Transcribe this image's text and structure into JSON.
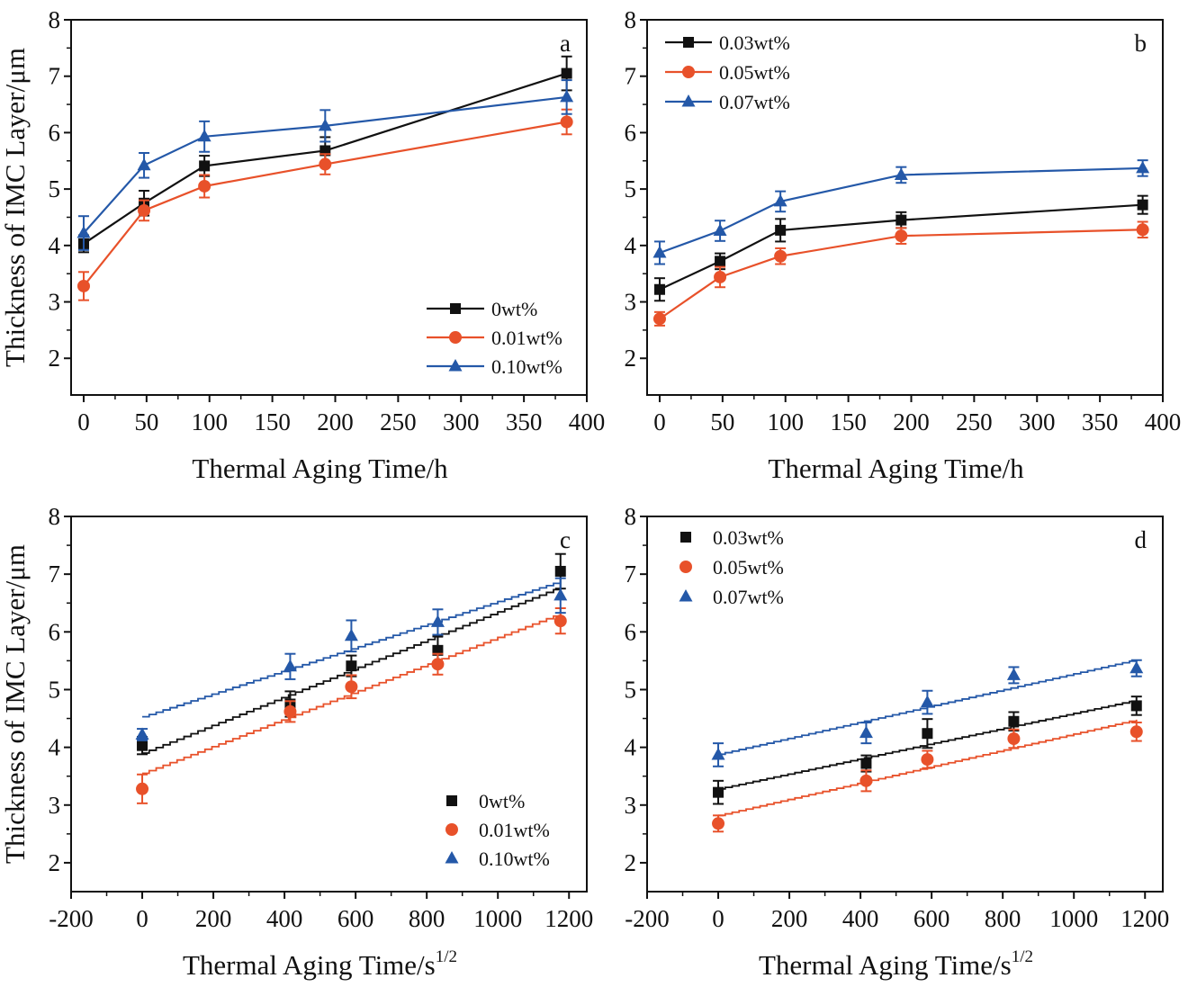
{
  "colors": {
    "black": "#111111",
    "red": "#e8512a",
    "blue": "#2458a8"
  },
  "chart_data": [
    {
      "panel": "a",
      "type": "line",
      "xlabel": "Thermal Aging Time/h",
      "ylabel": "Thickness of IMC Layer/μm",
      "xlim": [
        -10,
        400
      ],
      "ylim": [
        1.35,
        8
      ],
      "xticks": [
        0,
        50,
        100,
        150,
        200,
        250,
        300,
        350,
        400
      ],
      "yticks": [
        2,
        3,
        4,
        5,
        6,
        7,
        8
      ],
      "legend_position": "bottom-right",
      "legend_style": "line",
      "series": [
        {
          "name": "0wt%",
          "color": "#111111",
          "marker": "square",
          "x": [
            0,
            48,
            96,
            192,
            384
          ],
          "y": [
            4.03,
            4.75,
            5.41,
            5.68,
            7.05
          ],
          "err": [
            0.15,
            0.22,
            0.18,
            0.24,
            0.3
          ]
        },
        {
          "name": "0.01wt%",
          "color": "#e8512a",
          "marker": "circle",
          "x": [
            0,
            48,
            96,
            192,
            384
          ],
          "y": [
            3.28,
            4.62,
            5.05,
            5.44,
            6.19
          ],
          "err": [
            0.25,
            0.18,
            0.2,
            0.18,
            0.22
          ]
        },
        {
          "name": "0.10wt%",
          "color": "#2458a8",
          "marker": "triangle",
          "x": [
            0,
            48,
            96,
            192,
            384
          ],
          "y": [
            4.22,
            5.42,
            5.93,
            6.12,
            6.63
          ],
          "err": [
            0.3,
            0.22,
            0.27,
            0.28,
            0.3
          ]
        }
      ]
    },
    {
      "panel": "b",
      "type": "line",
      "xlabel": "Thermal Aging Time/h",
      "ylabel": "",
      "xlim": [
        -10,
        400
      ],
      "ylim": [
        1.35,
        8
      ],
      "xticks": [
        0,
        50,
        100,
        150,
        200,
        250,
        300,
        350,
        400
      ],
      "yticks": [
        2,
        3,
        4,
        5,
        6,
        7,
        8
      ],
      "legend_position": "top-left",
      "legend_style": "line",
      "series": [
        {
          "name": "0.03wt%",
          "color": "#111111",
          "marker": "square",
          "x": [
            0,
            48,
            96,
            192,
            384
          ],
          "y": [
            3.22,
            3.72,
            4.27,
            4.45,
            4.72
          ],
          "err": [
            0.2,
            0.14,
            0.2,
            0.14,
            0.16
          ]
        },
        {
          "name": "0.05wt%",
          "color": "#e8512a",
          "marker": "circle",
          "x": [
            0,
            48,
            96,
            192,
            384
          ],
          "y": [
            2.7,
            3.44,
            3.81,
            4.17,
            4.28
          ],
          "err": [
            0.12,
            0.18,
            0.14,
            0.14,
            0.14
          ]
        },
        {
          "name": "0.07wt%",
          "color": "#2458a8",
          "marker": "triangle",
          "x": [
            0,
            48,
            96,
            192,
            384
          ],
          "y": [
            3.87,
            4.26,
            4.78,
            5.25,
            5.37
          ],
          "err": [
            0.2,
            0.18,
            0.18,
            0.14,
            0.14
          ]
        }
      ]
    },
    {
      "panel": "c",
      "type": "scatter",
      "xlabel": "Thermal Aging Time/s",
      "xlabel_superscript": "1/2",
      "ylabel": "Thickness of IMC Layer/μm",
      "xlim": [
        -200,
        1250
      ],
      "ylim": [
        1.5,
        8
      ],
      "xticks": [
        -200,
        0,
        200,
        400,
        600,
        800,
        1000,
        1200
      ],
      "yticks": [
        2,
        3,
        4,
        5,
        6,
        7,
        8
      ],
      "legend_position": "bottom-right",
      "legend_style": "marker",
      "series": [
        {
          "name": "0wt%",
          "color": "#111111",
          "marker": "square",
          "x": [
            0,
            416,
            588,
            831,
            1176
          ],
          "y": [
            4.03,
            4.75,
            5.41,
            5.68,
            7.05
          ],
          "err": [
            0.15,
            0.22,
            0.18,
            0.24,
            0.3
          ],
          "fit": {
            "x": [
              0,
              1176
            ],
            "y": [
              3.9,
              6.78
            ]
          }
        },
        {
          "name": "0.01wt%",
          "color": "#e8512a",
          "marker": "circle",
          "x": [
            0,
            416,
            588,
            831,
            1176
          ],
          "y": [
            3.28,
            4.62,
            5.05,
            5.44,
            6.19
          ],
          "err": [
            0.25,
            0.18,
            0.2,
            0.18,
            0.22
          ],
          "fit": {
            "x": [
              0,
              1176
            ],
            "y": [
              3.55,
              6.32
            ]
          }
        },
        {
          "name": "0.10wt%",
          "color": "#2458a8",
          "marker": "triangle",
          "x": [
            0,
            416,
            588,
            831,
            1176
          ],
          "y": [
            4.22,
            5.4,
            5.93,
            6.17,
            6.63
          ],
          "err": [
            0.1,
            0.22,
            0.27,
            0.22,
            0.3
          ],
          "fit": {
            "x": [
              0,
              1176
            ],
            "y": [
              4.53,
              6.88
            ]
          }
        }
      ]
    },
    {
      "panel": "d",
      "type": "scatter",
      "xlabel": "Thermal Aging Time/s",
      "xlabel_superscript": "1/2",
      "ylabel": "",
      "xlim": [
        -200,
        1250
      ],
      "ylim": [
        1.5,
        8
      ],
      "xticks": [
        -200,
        0,
        200,
        400,
        600,
        800,
        1000,
        1200
      ],
      "yticks": [
        2,
        3,
        4,
        5,
        6,
        7,
        8
      ],
      "legend_position": "top-left",
      "legend_style": "marker",
      "series": [
        {
          "name": "0.03wt%",
          "color": "#111111",
          "marker": "square",
          "x": [
            0,
            416,
            588,
            831,
            1176
          ],
          "y": [
            3.22,
            3.72,
            4.24,
            4.45,
            4.72
          ],
          "err": [
            0.2,
            0.14,
            0.25,
            0.16,
            0.16
          ],
          "fit": {
            "x": [
              0,
              1176
            ],
            "y": [
              3.28,
              4.82
            ]
          }
        },
        {
          "name": "0.05wt%",
          "color": "#e8512a",
          "marker": "circle",
          "x": [
            0,
            416,
            588,
            831,
            1176
          ],
          "y": [
            2.68,
            3.42,
            3.79,
            4.15,
            4.27
          ],
          "err": [
            0.14,
            0.18,
            0.15,
            0.16,
            0.16
          ],
          "fit": {
            "x": [
              0,
              1176
            ],
            "y": [
              2.82,
              4.48
            ]
          }
        },
        {
          "name": "0.07wt%",
          "color": "#2458a8",
          "marker": "triangle",
          "x": [
            0,
            416,
            588,
            831,
            1176
          ],
          "y": [
            3.87,
            4.25,
            4.78,
            5.25,
            5.37
          ],
          "err": [
            0.2,
            0.18,
            0.2,
            0.14,
            0.14
          ],
          "fit": {
            "x": [
              0,
              1176
            ],
            "y": [
              3.88,
              5.52
            ]
          }
        }
      ]
    }
  ]
}
